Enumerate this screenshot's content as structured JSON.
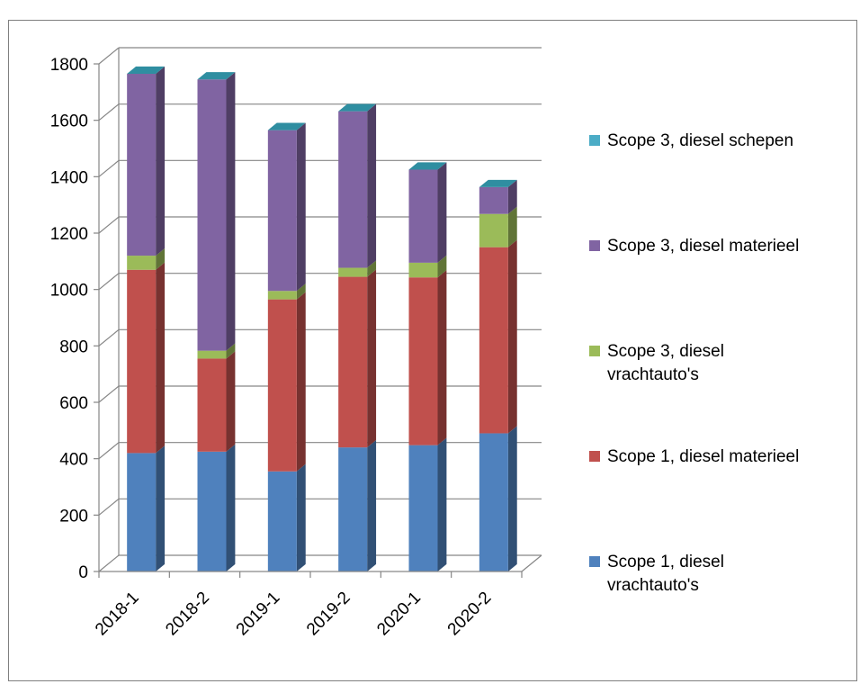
{
  "caption": "",
  "chart_data": {
    "type": "bar",
    "stacked": true,
    "three_d": true,
    "title": "",
    "xlabel": "",
    "ylabel": "",
    "ylim": [
      0,
      1800
    ],
    "yticks": [
      0,
      200,
      400,
      600,
      800,
      1000,
      1200,
      1400,
      1600,
      1800
    ],
    "grid": true,
    "legend_position": "right",
    "categories": [
      "2018-1",
      "2018-2",
      "2019-1",
      "2019-2",
      "2020-1",
      "2020-2"
    ],
    "series": [
      {
        "name": "Scope 1, diesel vrachtauto's",
        "color": "#4f81bd",
        "values": [
          420,
          425,
          355,
          440,
          448,
          490
        ]
      },
      {
        "name": "Scope 1, diesel materieel",
        "color": "#c0504d",
        "values": [
          650,
          330,
          610,
          605,
          595,
          660
        ]
      },
      {
        "name": "Scope 3, diesel vrachtauto's",
        "color": "#9bbb59",
        "values": [
          50,
          28,
          30,
          32,
          52,
          118
        ]
      },
      {
        "name": "Scope 3, diesel materieel",
        "color": "#8064a2",
        "values": [
          645,
          962,
          570,
          555,
          330,
          95
        ]
      },
      {
        "name": "Scope 3, diesel schepen",
        "color": "#4bacc6",
        "values": [
          0,
          0,
          0,
          0,
          0,
          0
        ]
      }
    ]
  }
}
